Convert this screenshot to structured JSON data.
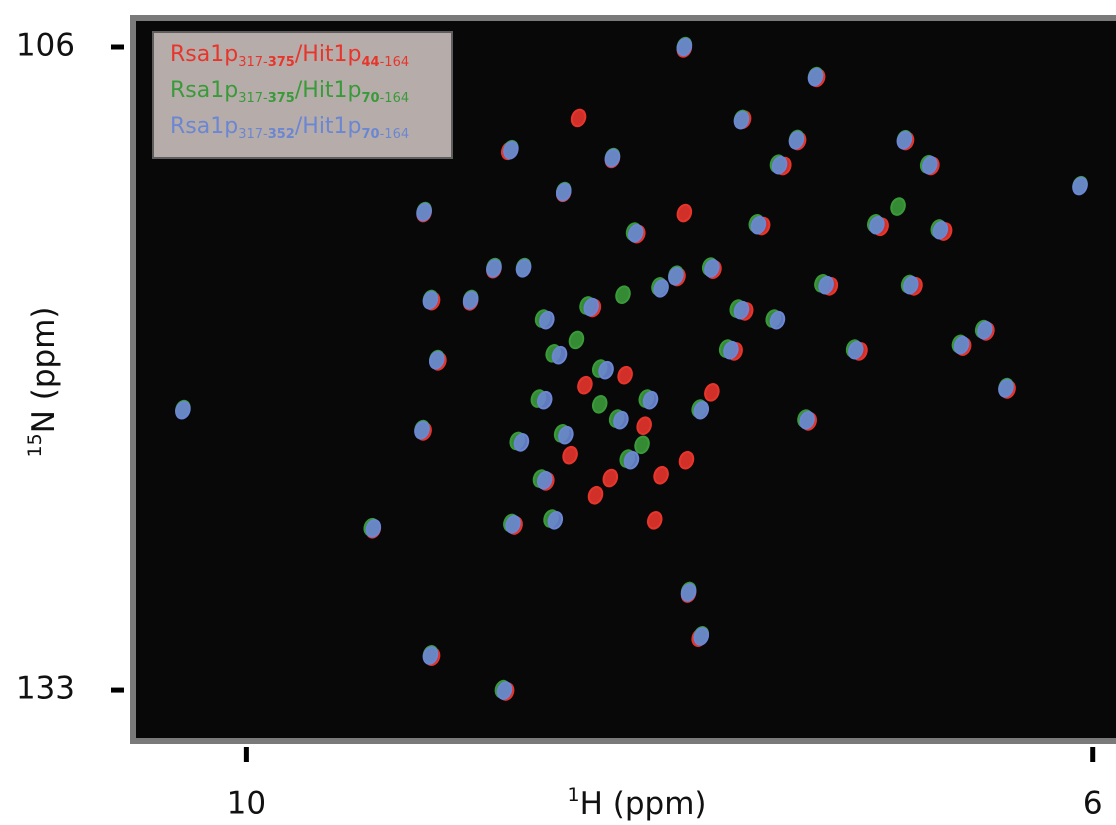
{
  "chart_data": {
    "type": "scatter",
    "xlabel": [
      "1",
      "H (ppm)"
    ],
    "ylabel": [
      "15",
      "N (ppm)"
    ],
    "xlim": [
      10.55,
      5.89
    ],
    "ylim": [
      104.74,
      135.18
    ],
    "xticks": [
      10,
      6
    ],
    "yticks": [
      106,
      133
    ],
    "series": [
      {
        "name": [
          "Rsa1p",
          "317-",
          "375",
          "/Hit1p",
          "44",
          "-164"
        ],
        "color": "#e8352c",
        "x": [
          7.93,
          7.3,
          7.65,
          8.76,
          8.27,
          7.39,
          6.88,
          8.5,
          9.16,
          7.46,
          6.76,
          7.56,
          8.15,
          7.0,
          6.7,
          8.83,
          7.79,
          7.96,
          9.12,
          8.94,
          8.36,
          7.64,
          7.24,
          6.84,
          6.5,
          6.61,
          7.1,
          7.69,
          9.09,
          6.4,
          7.34,
          9.16,
          8.58,
          8.73,
          7.91,
          7.86,
          9.4,
          9.12,
          8.77,
          8.43,
          7.93,
          8.21,
          8.35,
          8.07,
          7.92,
          8.04,
          8.47,
          8.4,
          8.12,
          7.8,
          8.28
        ],
        "y": [
          106.06,
          107.3,
          109.05,
          110.36,
          110.7,
          109.95,
          109.95,
          112.12,
          112.97,
          111.0,
          111.0,
          113.52,
          113.86,
          113.55,
          113.75,
          115.33,
          115.35,
          115.66,
          116.67,
          116.68,
          116.96,
          117.1,
          116.05,
          116.05,
          117.94,
          118.58,
          118.78,
          118.78,
          119.2,
          120.38,
          121.72,
          122.14,
          124.24,
          126.09,
          128.95,
          130.8,
          126.25,
          131.6,
          133.06,
          108.98,
          112.97,
          119.78,
          124.82,
          125.87,
          123.35,
          123.98,
          123.14,
          120.2,
          121.9,
          120.5,
          124.1
        ]
      },
      {
        "name": [
          "Rsa1p",
          "317-",
          "375",
          "/Hit1p",
          "70",
          "-164"
        ],
        "color": "#3a9a3a",
        "x": [
          7.93,
          7.31,
          7.66,
          8.75,
          8.27,
          7.4,
          6.89,
          8.5,
          9.16,
          7.49,
          6.78,
          6.06,
          7.59,
          8.17,
          7.03,
          6.73,
          8.83,
          8.69,
          7.81,
          7.97,
          9.13,
          8.94,
          8.6,
          8.39,
          8.05,
          7.68,
          7.28,
          6.87,
          6.52,
          6.63,
          7.13,
          7.73,
          8.55,
          9.1,
          8.33,
          6.41,
          10.3,
          8.62,
          8.25,
          7.86,
          7.36,
          9.17,
          8.72,
          8.51,
          8.2,
          8.61,
          8.75,
          8.56,
          7.91,
          7.85,
          9.41,
          9.13,
          8.79,
          7.51,
          8.11,
          8.22,
          8.44,
          8.13,
          8.33,
          6.92
        ],
        "y": [
          105.96,
          107.22,
          109.02,
          110.29,
          110.62,
          109.86,
          109.87,
          112.05,
          112.89,
          110.9,
          110.92,
          111.8,
          113.4,
          113.75,
          113.4,
          113.62,
          115.24,
          115.24,
          115.22,
          115.56,
          116.58,
          116.58,
          117.4,
          116.85,
          116.05,
          116.98,
          115.92,
          115.95,
          117.84,
          118.46,
          118.66,
          118.66,
          118.86,
          119.1,
          119.5,
          120.28,
          121.2,
          120.76,
          121.6,
          121.18,
          121.6,
          122.04,
          122.54,
          122.22,
          123.28,
          124.12,
          125.98,
          125.8,
          128.84,
          130.7,
          126.16,
          131.5,
          132.96,
          117.4,
          120.76,
          116.4,
          118.3,
          122.7,
          121.0,
          112.7
        ]
      },
      {
        "name": [
          "Rsa1p",
          "317-",
          "352",
          "/Hit1p",
          "70",
          "-164"
        ],
        "color": "#6b86d2",
        "x": [
          7.93,
          7.31,
          7.66,
          8.75,
          8.27,
          7.4,
          6.89,
          8.5,
          9.16,
          7.48,
          6.77,
          6.06,
          7.58,
          8.16,
          7.02,
          6.72,
          8.83,
          8.69,
          7.8,
          7.97,
          9.13,
          8.94,
          8.58,
          8.37,
          8.04,
          7.66,
          7.26,
          6.86,
          6.51,
          6.62,
          7.12,
          7.71,
          8.52,
          9.1,
          8.3,
          6.41,
          10.3,
          8.59,
          8.23,
          7.85,
          7.35,
          9.17,
          8.7,
          8.49,
          8.18,
          8.59,
          8.74,
          8.54,
          7.91,
          7.85,
          9.4,
          9.13,
          8.78,
          7.49,
          8.09
        ],
        "y": [
          106.0,
          107.26,
          109.07,
          110.33,
          110.66,
          109.91,
          109.91,
          112.09,
          112.93,
          110.96,
          110.96,
          111.84,
          113.48,
          113.82,
          113.48,
          113.69,
          115.29,
          115.29,
          115.29,
          115.62,
          116.63,
          116.63,
          117.47,
          116.92,
          116.13,
          117.05,
          116.0,
          116.0,
          117.89,
          118.52,
          118.73,
          118.73,
          118.94,
          119.15,
          119.57,
          120.33,
          121.25,
          120.83,
          121.67,
          121.25,
          121.67,
          122.09,
          122.6,
          122.3,
          123.35,
          124.19,
          126.04,
          125.87,
          128.9,
          130.75,
          126.21,
          131.55,
          133.02,
          117.47,
          120.83
        ]
      }
    ]
  }
}
